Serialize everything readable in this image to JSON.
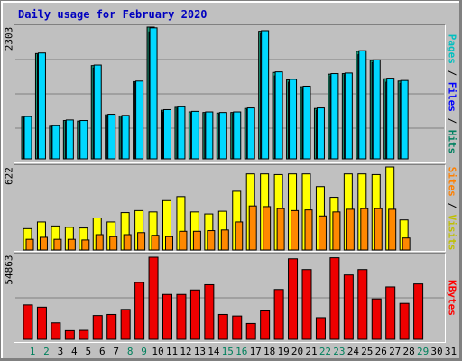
{
  "title": "Daily usage for February 2020",
  "colors": {
    "hits": "#00c0c0",
    "hits_back": "#009090",
    "files": "#00a0ff",
    "files_back": "#0060c0",
    "pages": "#00e0e0",
    "visits": "#ffff00",
    "sites": "#ff8000",
    "kbytes": "#ff0000",
    "weekend_day": "#00805c",
    "weekday_day": "#000000",
    "title": "#0000c0"
  },
  "panels": {
    "top": {
      "max_label": "2303",
      "legend": [
        {
          "text": "Pages",
          "color": "#00c0c0"
        },
        {
          "text": "Files",
          "color": "#0000ff"
        },
        {
          "text": "Hits",
          "color": "#008060"
        }
      ]
    },
    "middle": {
      "max_label": "622",
      "legend": [
        {
          "text": "Sites",
          "color": "#ff8000"
        },
        {
          "text": "Visits",
          "color": "#c0c000"
        }
      ]
    },
    "bottom": {
      "max_label": "54863",
      "legend": [
        {
          "text": "KBytes",
          "color": "#ff0000"
        }
      ]
    }
  },
  "chart_data": [
    {
      "type": "bar",
      "title": "Daily usage for February 2020",
      "categories": [
        "1",
        "2",
        "3",
        "4",
        "5",
        "6",
        "7",
        "8",
        "9",
        "10",
        "11",
        "12",
        "13",
        "14",
        "15",
        "16",
        "17",
        "18",
        "19",
        "20",
        "21",
        "22",
        "23",
        "24",
        "25",
        "26",
        "27",
        "28",
        "29",
        "30",
        "31"
      ],
      "weekend": [
        "1",
        "2",
        "8",
        "9",
        "15",
        "16",
        "22",
        "23",
        "29"
      ],
      "ylim": [
        0,
        2303
      ],
      "series": [
        {
          "name": "Hits",
          "values": [
            730,
            1840,
            570,
            670,
            660,
            1630,
            770,
            750,
            1350,
            2303,
            850,
            900,
            820,
            810,
            800,
            810,
            880,
            2230,
            1510,
            1380,
            1260,
            880,
            1480,
            1490,
            1880,
            1720,
            1400,
            1360,
            0,
            0,
            0
          ]
        },
        {
          "name": "Files",
          "values": [
            720,
            1820,
            560,
            650,
            640,
            1590,
            740,
            730,
            1330,
            2220,
            820,
            880,
            800,
            790,
            780,
            790,
            860,
            2190,
            1450,
            1340,
            1220,
            850,
            1450,
            1470,
            1820,
            1680,
            1340,
            1320,
            0,
            0,
            0
          ]
        },
        {
          "name": "Pages",
          "values": [
            740,
            1850,
            580,
            680,
            670,
            1640,
            780,
            760,
            1360,
            2290,
            860,
            910,
            830,
            820,
            810,
            820,
            890,
            2240,
            1520,
            1390,
            1270,
            890,
            1490,
            1500,
            1890,
            1730,
            1410,
            1370,
            0,
            0,
            0
          ]
        }
      ]
    },
    {
      "type": "bar",
      "categories": [
        "1",
        "2",
        "3",
        "4",
        "5",
        "6",
        "7",
        "8",
        "9",
        "10",
        "11",
        "12",
        "13",
        "14",
        "15",
        "16",
        "17",
        "18",
        "19",
        "20",
        "21",
        "22",
        "23",
        "24",
        "25",
        "26",
        "27",
        "28",
        "29",
        "30",
        "31"
      ],
      "ylim": [
        0,
        622
      ],
      "series": [
        {
          "name": "Visits",
          "values": [
            160,
            210,
            180,
            170,
            165,
            240,
            210,
            280,
            295,
            285,
            370,
            400,
            285,
            270,
            290,
            440,
            570,
            570,
            565,
            570,
            570,
            475,
            395,
            570,
            570,
            565,
            622,
            225,
            0,
            0,
            0
          ]
        },
        {
          "name": "Sites",
          "values": [
            80,
            95,
            80,
            80,
            75,
            115,
            100,
            115,
            130,
            110,
            100,
            140,
            140,
            145,
            150,
            210,
            330,
            325,
            310,
            295,
            300,
            255,
            285,
            305,
            310,
            310,
            305,
            90,
            0,
            0,
            0
          ]
        }
      ]
    },
    {
      "type": "bar",
      "categories": [
        "1",
        "2",
        "3",
        "4",
        "5",
        "6",
        "7",
        "8",
        "9",
        "10",
        "11",
        "12",
        "13",
        "14",
        "15",
        "16",
        "17",
        "18",
        "19",
        "20",
        "21",
        "22",
        "23",
        "24",
        "25",
        "26",
        "27",
        "28",
        "29",
        "30",
        "31"
      ],
      "ylim": [
        0,
        54863
      ],
      "series": [
        {
          "name": "KBytes",
          "values": [
            23000,
            21500,
            11000,
            5800,
            6000,
            15900,
            16600,
            20000,
            38000,
            54863,
            30000,
            30000,
            33000,
            36500,
            16600,
            15600,
            10600,
            19000,
            33300,
            53800,
            46600,
            14500,
            54500,
            43000,
            46600,
            27000,
            35000,
            24000,
            37000,
            0,
            0
          ]
        }
      ]
    }
  ]
}
